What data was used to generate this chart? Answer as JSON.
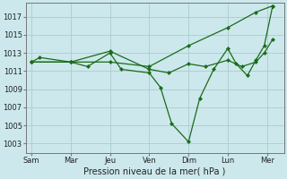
{
  "background_color": "#cce8ec",
  "grid_color": "#aacccc",
  "line_color": "#1a6b1a",
  "xlabel": "Pression niveau de la mer( hPa )",
  "yticks": [
    1003,
    1005,
    1007,
    1009,
    1011,
    1013,
    1015,
    1017
  ],
  "xlabels": [
    "Sam",
    "Mar",
    "Jeu",
    "Ven",
    "Dim",
    "Lun",
    "Mer"
  ],
  "xtick_positions": [
    0,
    14,
    28,
    42,
    56,
    70,
    84
  ],
  "ylim": [
    1002.0,
    1018.5
  ],
  "xlim": [
    -2,
    90
  ],
  "line1_x": [
    0,
    3,
    14,
    20,
    28,
    32,
    42,
    46,
    50,
    56,
    60,
    65,
    70,
    73,
    77,
    80,
    83,
    86
  ],
  "line1_y": [
    1012.0,
    1012.5,
    1012.0,
    1011.5,
    1013.0,
    1011.2,
    1010.8,
    1009.2,
    1005.2,
    1003.2,
    1008.0,
    1011.2,
    1013.5,
    1011.8,
    1010.5,
    1012.2,
    1013.8,
    1018.2
  ],
  "line2_x": [
    0,
    14,
    28,
    42,
    49,
    56,
    62,
    70,
    75,
    80,
    83,
    86
  ],
  "line2_y": [
    1012.0,
    1012.0,
    1013.2,
    1011.2,
    1010.8,
    1011.8,
    1011.5,
    1012.2,
    1011.5,
    1012.0,
    1013.0,
    1014.5
  ],
  "line3_x": [
    0,
    14,
    28,
    42,
    56,
    70,
    80,
    86
  ],
  "line3_y": [
    1012.0,
    1012.0,
    1012.0,
    1011.5,
    1013.8,
    1015.8,
    1017.5,
    1018.2
  ]
}
